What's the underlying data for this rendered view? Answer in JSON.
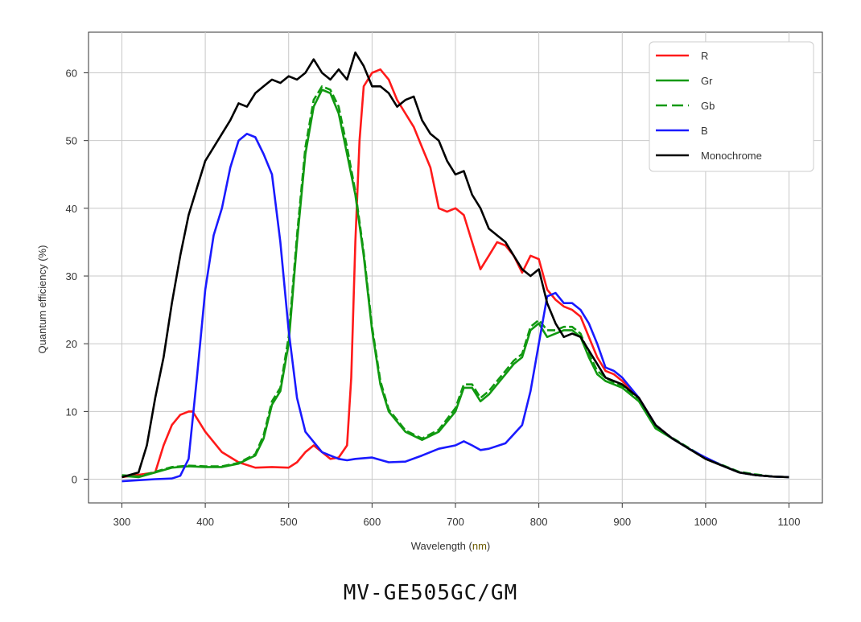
{
  "chart_data": {
    "type": "line",
    "title": "",
    "xlabel_prefix": "Wavelength (",
    "xlabel_unit": "nm",
    "xlabel_suffix": ")",
    "ylabel": "Quantum efficiency (%)",
    "xlim": [
      260,
      1140
    ],
    "ylim": [
      -3.5,
      66
    ],
    "xticks": [
      300,
      400,
      500,
      600,
      700,
      800,
      900,
      1000,
      1100
    ],
    "yticks": [
      0,
      10,
      20,
      30,
      40,
      50,
      60
    ],
    "grid": true,
    "legend_position": "top-right",
    "series": [
      {
        "name": "R",
        "color": "#ff1a1a",
        "dash": false,
        "x": [
          300,
          340,
          350,
          360,
          370,
          380,
          385,
          390,
          400,
          420,
          440,
          460,
          480,
          500,
          510,
          520,
          530,
          540,
          550,
          560,
          570,
          575,
          580,
          585,
          590,
          600,
          610,
          620,
          630,
          640,
          650,
          660,
          670,
          680,
          690,
          700,
          710,
          720,
          730,
          740,
          750,
          760,
          770,
          780,
          790,
          800,
          810,
          820,
          830,
          840,
          850,
          860,
          870,
          880,
          890,
          900,
          920,
          940,
          960,
          980,
          1000,
          1020,
          1040,
          1060,
          1080,
          1100
        ],
        "y": [
          0.3,
          1,
          5,
          8,
          9.5,
          10,
          10,
          9,
          7,
          4,
          2.5,
          1.7,
          1.8,
          1.7,
          2.5,
          4,
          5,
          4,
          3,
          3.2,
          5,
          15,
          35,
          50,
          58,
          60,
          60.5,
          59,
          56,
          54,
          52,
          49,
          46,
          40,
          39.5,
          40,
          39,
          35,
          31,
          33,
          35,
          34.5,
          33,
          30.5,
          33,
          32.5,
          28,
          26.5,
          25.5,
          25,
          24,
          21,
          18,
          16,
          15.5,
          14.5,
          12,
          8,
          6,
          4.5,
          3,
          2,
          1,
          0.6,
          0.4,
          0.3
        ]
      },
      {
        "name": "Gr",
        "color": "#119911",
        "dash": false,
        "x": [
          300,
          320,
          340,
          360,
          380,
          400,
          420,
          440,
          460,
          470,
          480,
          490,
          500,
          510,
          520,
          530,
          540,
          550,
          560,
          570,
          580,
          590,
          600,
          610,
          620,
          640,
          660,
          680,
          700,
          710,
          720,
          730,
          740,
          750,
          760,
          770,
          780,
          790,
          800,
          810,
          820,
          830,
          840,
          850,
          860,
          870,
          880,
          890,
          900,
          920,
          940,
          960,
          980,
          1000,
          1020,
          1040,
          1060,
          1080,
          1100
        ],
        "y": [
          0.5,
          0.3,
          1,
          1.7,
          1.9,
          1.8,
          1.8,
          2.3,
          3.5,
          6,
          11,
          13,
          20,
          35,
          48,
          55,
          57.5,
          57,
          54,
          48,
          42,
          33,
          22,
          14,
          10,
          7,
          5.8,
          7,
          10,
          13.5,
          13.5,
          11.5,
          12.5,
          14,
          15.5,
          17,
          18,
          22,
          23,
          21,
          21.5,
          22,
          22,
          21,
          18,
          15.5,
          14.5,
          14,
          13.5,
          11.5,
          7.5,
          6,
          4.5,
          3,
          2,
          1,
          0.6,
          0.4,
          0.3
        ]
      },
      {
        "name": "Gb",
        "color": "#119911",
        "dash": true,
        "x": [
          300,
          320,
          340,
          360,
          380,
          400,
          420,
          440,
          460,
          470,
          480,
          490,
          500,
          510,
          520,
          530,
          540,
          550,
          560,
          570,
          580,
          590,
          600,
          610,
          620,
          640,
          660,
          680,
          700,
          710,
          720,
          730,
          740,
          750,
          760,
          770,
          780,
          790,
          800,
          810,
          820,
          830,
          840,
          850,
          860,
          870,
          880,
          890,
          900,
          920,
          940,
          960,
          980,
          1000,
          1020,
          1040,
          1060,
          1080,
          1100
        ],
        "y": [
          0.6,
          0.4,
          1.1,
          1.8,
          2,
          1.9,
          1.9,
          2.4,
          3.7,
          6.5,
          11.5,
          13.5,
          21,
          36,
          49,
          56,
          58,
          57.5,
          55,
          49,
          42.5,
          33.5,
          22.5,
          14.5,
          10.3,
          7.2,
          6,
          7.3,
          10.5,
          14,
          14,
          12,
          13,
          14.5,
          16,
          17.5,
          18.5,
          22.5,
          23.5,
          22,
          22,
          22.5,
          22.5,
          21.5,
          18.5,
          16,
          15,
          14.3,
          13.7,
          11.7,
          7.7,
          6.1,
          4.6,
          3.1,
          2.1,
          1.1,
          0.7,
          0.4,
          0.3
        ]
      },
      {
        "name": "B",
        "color": "#1a1aff",
        "dash": false,
        "x": [
          300,
          340,
          360,
          370,
          380,
          390,
          400,
          410,
          420,
          430,
          440,
          450,
          460,
          470,
          480,
          490,
          500,
          510,
          520,
          540,
          560,
          570,
          580,
          600,
          620,
          640,
          660,
          680,
          700,
          710,
          720,
          730,
          740,
          760,
          780,
          790,
          800,
          810,
          820,
          830,
          840,
          850,
          860,
          870,
          880,
          890,
          900,
          920,
          940,
          960,
          980,
          1000,
          1020,
          1040,
          1060,
          1080,
          1100
        ],
        "y": [
          -0.3,
          0,
          0.1,
          0.5,
          3,
          15,
          28,
          36,
          40,
          46,
          50,
          51,
          50.5,
          48,
          45,
          35,
          22,
          12,
          7,
          4,
          3,
          2.8,
          3,
          3.2,
          2.5,
          2.6,
          3.5,
          4.5,
          5,
          5.6,
          5,
          4.3,
          4.5,
          5.3,
          8,
          13,
          20,
          27,
          27.5,
          26,
          26,
          25,
          23,
          20,
          16.5,
          16,
          15,
          12,
          8,
          6,
          4.5,
          3.2,
          2,
          1,
          0.6,
          0.4,
          0.3
        ]
      },
      {
        "name": "Monochrome",
        "color": "#000000",
        "dash": false,
        "x": [
          300,
          320,
          330,
          340,
          350,
          360,
          370,
          380,
          390,
          400,
          410,
          420,
          430,
          440,
          450,
          460,
          470,
          480,
          490,
          500,
          510,
          520,
          530,
          540,
          550,
          560,
          570,
          580,
          590,
          600,
          610,
          620,
          630,
          640,
          650,
          660,
          670,
          680,
          690,
          700,
          710,
          720,
          730,
          740,
          750,
          760,
          770,
          780,
          790,
          800,
          810,
          820,
          830,
          840,
          850,
          860,
          870,
          880,
          890,
          900,
          920,
          940,
          960,
          980,
          1000,
          1020,
          1040,
          1060,
          1080,
          1100
        ],
        "y": [
          0.3,
          1,
          5,
          12,
          18,
          26,
          33,
          39,
          43,
          47,
          49,
          51,
          53,
          55.5,
          55,
          57,
          58,
          59,
          58.5,
          59.5,
          59,
          60,
          62,
          60,
          59,
          60.5,
          59,
          63,
          61,
          58,
          58,
          57,
          55,
          56,
          56.5,
          53,
          51,
          50,
          47,
          45,
          45.5,
          42,
          40,
          37,
          36,
          35,
          33,
          31,
          30,
          31,
          26,
          23,
          21,
          21.5,
          21,
          19,
          17,
          15,
          14.5,
          14,
          12,
          8,
          6,
          4.5,
          3,
          2,
          1,
          0.6,
          0.4,
          0.3
        ]
      }
    ]
  },
  "caption": "MV-GE505GC/GM"
}
